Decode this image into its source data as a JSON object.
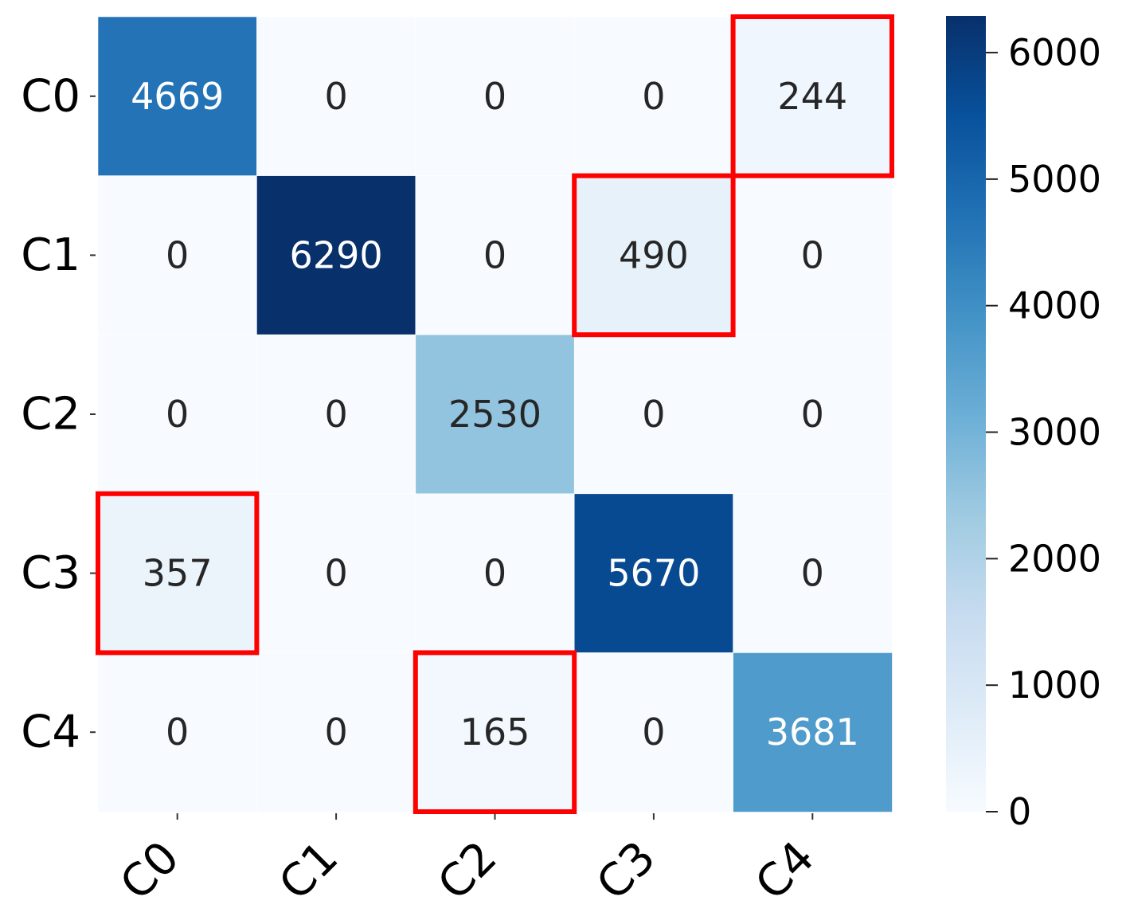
{
  "chart_data": {
    "type": "heatmap",
    "title": "",
    "xlabel": "",
    "ylabel": "",
    "x_categories": [
      "C0",
      "C1",
      "C2",
      "C3",
      "C4"
    ],
    "y_categories": [
      "C0",
      "C1",
      "C2",
      "C3",
      "C4"
    ],
    "values": [
      [
        4669,
        0,
        0,
        0,
        244
      ],
      [
        0,
        6290,
        0,
        490,
        0
      ],
      [
        0,
        0,
        2530,
        0,
        0
      ],
      [
        357,
        0,
        0,
        5670,
        0
      ],
      [
        0,
        0,
        165,
        0,
        3681
      ]
    ],
    "colormap": "Blues",
    "colorbar": {
      "range": [
        0,
        6290
      ],
      "ticks": [
        0,
        1000,
        2000,
        3000,
        4000,
        5000,
        6000
      ]
    },
    "highlighted_cells": [
      {
        "row": 0,
        "col": 4
      },
      {
        "row": 1,
        "col": 3
      },
      {
        "row": 3,
        "col": 0
      },
      {
        "row": 4,
        "col": 2
      }
    ],
    "highlight_color": "#ff0000",
    "x_tick_rotation": "45 degrees",
    "colors": {
      "text_light": "#ffffff",
      "text_dark": "#262626"
    }
  }
}
